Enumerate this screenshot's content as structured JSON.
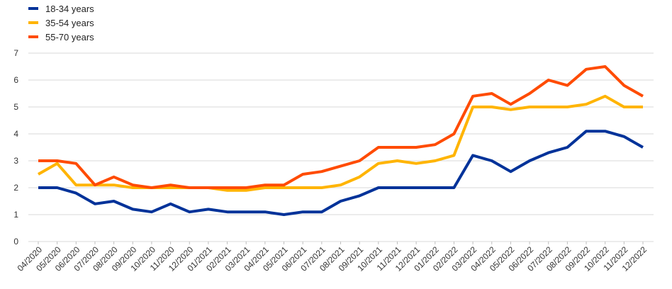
{
  "chart_data": {
    "type": "line",
    "categories": [
      "04/2020",
      "05/2020",
      "06/2020",
      "07/2020",
      "08/2020",
      "09/2020",
      "10/2020",
      "11/2020",
      "12/2020",
      "01/2021",
      "02/2021",
      "03/2021",
      "04/2021",
      "05/2021",
      "06/2021",
      "07/2021",
      "08/2021",
      "09/2021",
      "10/2021",
      "11/2021",
      "12/2021",
      "01/2022",
      "02/2022",
      "03/2022",
      "04/2022",
      "05/2022",
      "06/2022",
      "07/2022",
      "08/2022",
      "09/2022",
      "10/2022",
      "11/2022",
      "12/2022"
    ],
    "series": [
      {
        "name": "18-34 years",
        "color": "#003299",
        "values": [
          2.0,
          2.0,
          1.8,
          1.4,
          1.5,
          1.2,
          1.1,
          1.4,
          1.1,
          1.2,
          1.1,
          1.1,
          1.1,
          1.0,
          1.1,
          1.1,
          1.5,
          1.7,
          2.0,
          2.0,
          2.0,
          2.0,
          2.0,
          3.2,
          3.0,
          2.6,
          3.0,
          3.3,
          3.5,
          4.1,
          4.1,
          3.9,
          3.5
        ]
      },
      {
        "name": "35-54 years",
        "color": "#ffb400",
        "values": [
          2.5,
          2.9,
          2.1,
          2.1,
          2.1,
          2.0,
          2.0,
          2.0,
          2.0,
          2.0,
          1.9,
          1.9,
          2.0,
          2.0,
          2.0,
          2.0,
          2.1,
          2.4,
          2.9,
          3.0,
          2.9,
          3.0,
          3.2,
          5.0,
          5.0,
          4.9,
          5.0,
          5.0,
          5.0,
          5.1,
          5.4,
          5.0,
          5.0
        ]
      },
      {
        "name": "55-70 years",
        "color": "#ff4b00",
        "values": [
          3.0,
          3.0,
          2.9,
          2.1,
          2.4,
          2.1,
          2.0,
          2.1,
          2.0,
          2.0,
          2.0,
          2.0,
          2.1,
          2.1,
          2.5,
          2.6,
          2.8,
          3.0,
          3.5,
          3.5,
          3.5,
          3.6,
          4.0,
          5.4,
          5.5,
          5.1,
          5.5,
          6.0,
          5.8,
          6.4,
          6.5,
          5.8,
          5.4
        ]
      }
    ],
    "yticks": [
      "0",
      "1",
      "2",
      "3",
      "4",
      "5",
      "6",
      "7"
    ],
    "ylim": [
      0,
      7
    ],
    "grid": true,
    "legend_position": "top-left"
  }
}
